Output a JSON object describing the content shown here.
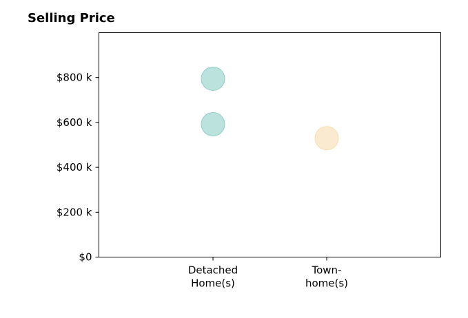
{
  "chart_data": {
    "type": "scatter",
    "title": "Selling Price",
    "xlabel": "",
    "ylabel": "",
    "categories": [
      [
        "Detached",
        "Home(s)"
      ],
      [
        "Town-",
        "home(s)"
      ]
    ],
    "y_ticks": [
      0,
      200,
      400,
      600,
      800
    ],
    "y_tick_labels": [
      "$0",
      "$200 k",
      "$400 k",
      "$600 k",
      "$800 k"
    ],
    "ylim": [
      0,
      1000
    ],
    "grid": false,
    "points": [
      {
        "category": 0,
        "y": 795,
        "color": "#8fcfc7"
      },
      {
        "category": 0,
        "y": 592,
        "color": "#8fcfc7"
      },
      {
        "category": 1,
        "y": 530,
        "color": "#f7deb0"
      }
    ]
  }
}
